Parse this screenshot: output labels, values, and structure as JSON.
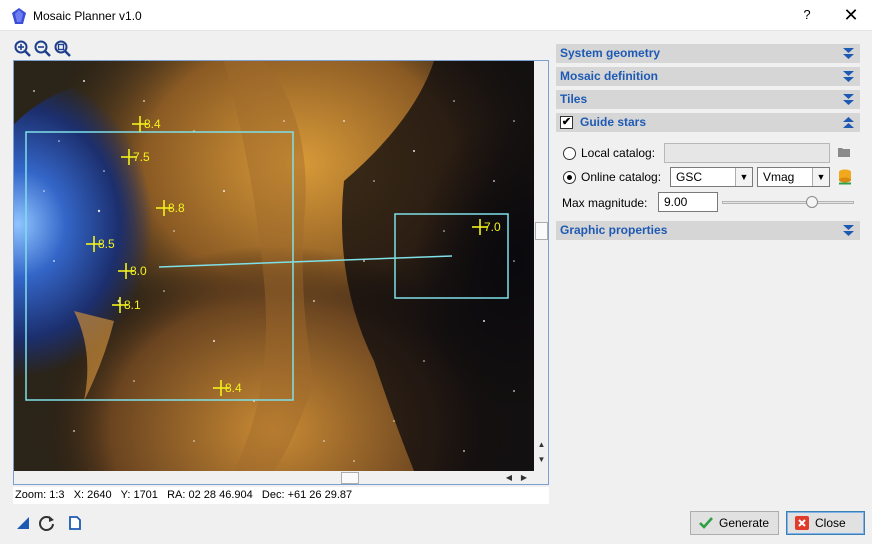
{
  "window": {
    "title": "Mosaic Planner v1.0",
    "help_label": "?",
    "close_label": "✕"
  },
  "toolbar": {
    "icons": [
      "zoom-in-icon",
      "zoom-out-icon",
      "zoom-fit-icon"
    ]
  },
  "viewer": {
    "stars": [
      {
        "label": "8.4"
      },
      {
        "label": "7.5"
      },
      {
        "label": "8.8"
      },
      {
        "label": "8.5"
      },
      {
        "label": "8.0"
      },
      {
        "label": "8.1"
      },
      {
        "label": "8.4"
      },
      {
        "label": "7.0"
      }
    ],
    "overlay_color": "#7fe0e8",
    "star_color": "#f2f21c"
  },
  "status": {
    "zoom": "Zoom: 1:3",
    "x": "X: 2640",
    "y": "Y: 1701",
    "ra": "RA: 02 28 46.904",
    "dec": "Dec: +61 26 29.87"
  },
  "sections": {
    "system_geometry": "System geometry",
    "mosaic_definition": "Mosaic definition",
    "tiles": "Tiles",
    "guide_stars": "Guide stars",
    "graphic_properties": "Graphic properties"
  },
  "guide_stars": {
    "enabled": true,
    "local_catalog_label": "Local catalog:",
    "local_catalog_value": "",
    "online_catalog_label": "Online catalog:",
    "catalog_selected": "GSC",
    "magnitude_band": "Vmag",
    "max_magnitude_label": "Max magnitude:",
    "max_magnitude_value": "9.00",
    "max_magnitude_slider_fraction": 0.69
  },
  "buttons": {
    "generate": "Generate",
    "close": "Close"
  },
  "bottom_icons": [
    "reset-view-icon",
    "refresh-icon",
    "new-document-icon"
  ],
  "colors": {
    "section_text": "#1e5ab4",
    "section_bg": "#d6d6d6",
    "generate_icon": "#2ea043",
    "close_icon": "#e03b2b"
  }
}
